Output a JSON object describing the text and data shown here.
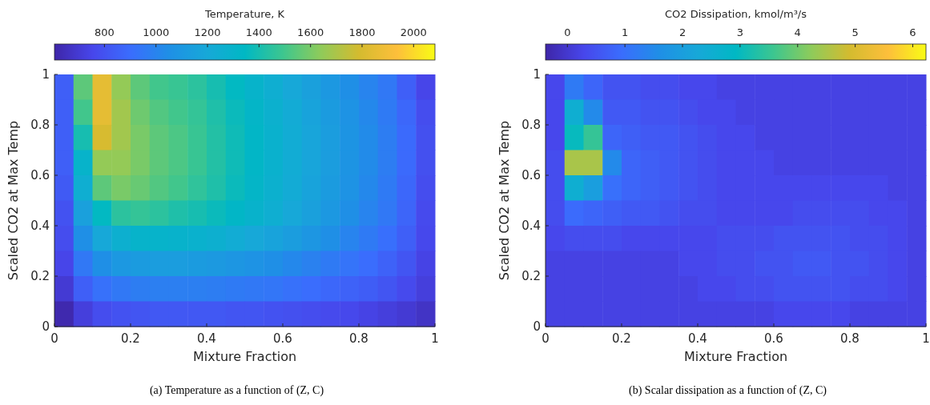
{
  "chart_data": [
    {
      "type": "heatmap",
      "clabel": "Temperature, K",
      "xlabel": "Mixture Fraction",
      "ylabel": "Scaled CO2 at Max Temp",
      "xlim": [
        0,
        1
      ],
      "xticks": [
        0,
        0.2,
        0.4,
        0.6,
        0.8,
        1
      ],
      "ylim": [
        0,
        1
      ],
      "yticks": [
        0,
        0.2,
        0.4,
        0.6,
        0.8,
        1
      ],
      "clim": [
        606,
        2083
      ],
      "cticks": [
        800,
        1000,
        1200,
        1400,
        1600,
        1800,
        2000
      ],
      "cells": [
        [
          850,
          1550,
          1850,
          1650,
          1550,
          1500,
          1480,
          1450,
          1400,
          1350,
          1300,
          1250,
          1200,
          1150,
          1100,
          1050,
          1000,
          950,
          850,
          750
        ],
        [
          850,
          1500,
          1850,
          1680,
          1580,
          1530,
          1500,
          1470,
          1420,
          1370,
          1320,
          1270,
          1220,
          1170,
          1120,
          1070,
          1020,
          960,
          880,
          780
        ],
        [
          850,
          1400,
          1800,
          1680,
          1600,
          1550,
          1520,
          1480,
          1430,
          1380,
          1330,
          1280,
          1230,
          1180,
          1130,
          1080,
          1030,
          970,
          890,
          790
        ],
        [
          850,
          1300,
          1650,
          1650,
          1600,
          1550,
          1520,
          1480,
          1430,
          1380,
          1330,
          1280,
          1230,
          1180,
          1130,
          1080,
          1030,
          970,
          890,
          790
        ],
        [
          830,
          1250,
          1550,
          1600,
          1570,
          1530,
          1500,
          1460,
          1420,
          1370,
          1320,
          1270,
          1220,
          1170,
          1120,
          1070,
          1020,
          960,
          880,
          780
        ],
        [
          800,
          1150,
          1350,
          1450,
          1470,
          1450,
          1420,
          1400,
          1370,
          1330,
          1290,
          1250,
          1200,
          1150,
          1100,
          1050,
          1000,
          950,
          870,
          770
        ],
        [
          780,
          1050,
          1200,
          1260,
          1300,
          1300,
          1290,
          1280,
          1260,
          1230,
          1200,
          1170,
          1130,
          1090,
          1050,
          1000,
          960,
          910,
          850,
          760
        ],
        [
          750,
          950,
          1050,
          1100,
          1120,
          1130,
          1130,
          1120,
          1110,
          1090,
          1070,
          1050,
          1020,
          990,
          960,
          930,
          900,
          860,
          810,
          740
        ],
        [
          700,
          850,
          920,
          950,
          970,
          980,
          980,
          980,
          970,
          960,
          950,
          940,
          920,
          900,
          880,
          860,
          840,
          810,
          770,
          720
        ],
        [
          620,
          720,
          780,
          800,
          810,
          820,
          820,
          820,
          820,
          810,
          810,
          800,
          790,
          780,
          770,
          760,
          740,
          720,
          700,
          670
        ]
      ],
      "annotations": [
        "(a) Temperature as a function of (Z, C)"
      ]
    },
    {
      "type": "heatmap",
      "clabel": "CO2 Dissipation, kmol/m³/s",
      "xlabel": "Mixture Fraction",
      "ylabel": "Scaled CO2 at Max Temp",
      "xlim": [
        0,
        1
      ],
      "xticks": [
        0,
        0.2,
        0.4,
        0.6,
        0.8,
        1
      ],
      "ylim": [
        0,
        1
      ],
      "yticks": [
        0,
        0.2,
        0.4,
        0.6,
        0.8,
        1
      ],
      "clim": [
        -0.38,
        6.23
      ],
      "cticks": [
        0,
        1,
        2,
        3,
        4,
        5,
        6
      ],
      "cells": [
        [
          0.3,
          1.2,
          0.8,
          0.5,
          0.5,
          0.4,
          0.4,
          0.3,
          0.3,
          0.2,
          0.2,
          0.2,
          0.2,
          0.2,
          0.2,
          0.2,
          0.2,
          0.2,
          0.2,
          0.2
        ],
        [
          0.3,
          2.5,
          1.5,
          0.6,
          0.6,
          0.5,
          0.5,
          0.4,
          0.3,
          0.3,
          0.2,
          0.2,
          0.2,
          0.2,
          0.2,
          0.2,
          0.2,
          0.2,
          0.2,
          0.2
        ],
        [
          0.3,
          3.0,
          3.5,
          0.8,
          0.7,
          0.6,
          0.6,
          0.5,
          0.4,
          0.3,
          0.3,
          0.2,
          0.2,
          0.2,
          0.2,
          0.2,
          0.2,
          0.2,
          0.2,
          0.2
        ],
        [
          0.4,
          4.5,
          4.5,
          1.5,
          0.8,
          0.7,
          0.6,
          0.5,
          0.4,
          0.3,
          0.3,
          0.3,
          0.2,
          0.2,
          0.2,
          0.2,
          0.2,
          0.2,
          0.2,
          0.2
        ],
        [
          0.4,
          2.5,
          2.0,
          1.0,
          0.8,
          0.7,
          0.6,
          0.5,
          0.4,
          0.3,
          0.3,
          0.3,
          0.3,
          0.3,
          0.3,
          0.3,
          0.3,
          0.3,
          0.2,
          0.2
        ],
        [
          0.4,
          0.9,
          0.8,
          0.7,
          0.6,
          0.6,
          0.5,
          0.4,
          0.4,
          0.3,
          0.3,
          0.3,
          0.3,
          0.4,
          0.4,
          0.4,
          0.4,
          0.3,
          0.3,
          0.2
        ],
        [
          0.3,
          0.4,
          0.4,
          0.4,
          0.3,
          0.3,
          0.3,
          0.3,
          0.3,
          0.4,
          0.4,
          0.4,
          0.5,
          0.5,
          0.5,
          0.5,
          0.4,
          0.4,
          0.3,
          0.2
        ],
        [
          0.2,
          0.2,
          0.2,
          0.2,
          0.2,
          0.2,
          0.2,
          0.3,
          0.3,
          0.4,
          0.4,
          0.5,
          0.5,
          0.6,
          0.6,
          0.5,
          0.5,
          0.4,
          0.3,
          0.2
        ],
        [
          0.2,
          0.2,
          0.2,
          0.2,
          0.2,
          0.2,
          0.2,
          0.2,
          0.3,
          0.3,
          0.4,
          0.4,
          0.5,
          0.5,
          0.5,
          0.5,
          0.4,
          0.4,
          0.3,
          0.2
        ],
        [
          0.2,
          0.2,
          0.2,
          0.2,
          0.2,
          0.2,
          0.2,
          0.2,
          0.2,
          0.2,
          0.2,
          0.2,
          0.3,
          0.3,
          0.3,
          0.3,
          0.2,
          0.2,
          0.2,
          0.2
        ]
      ],
      "annotations": [
        "(b) Scalar dissipation as a function of (Z, C)"
      ]
    }
  ]
}
